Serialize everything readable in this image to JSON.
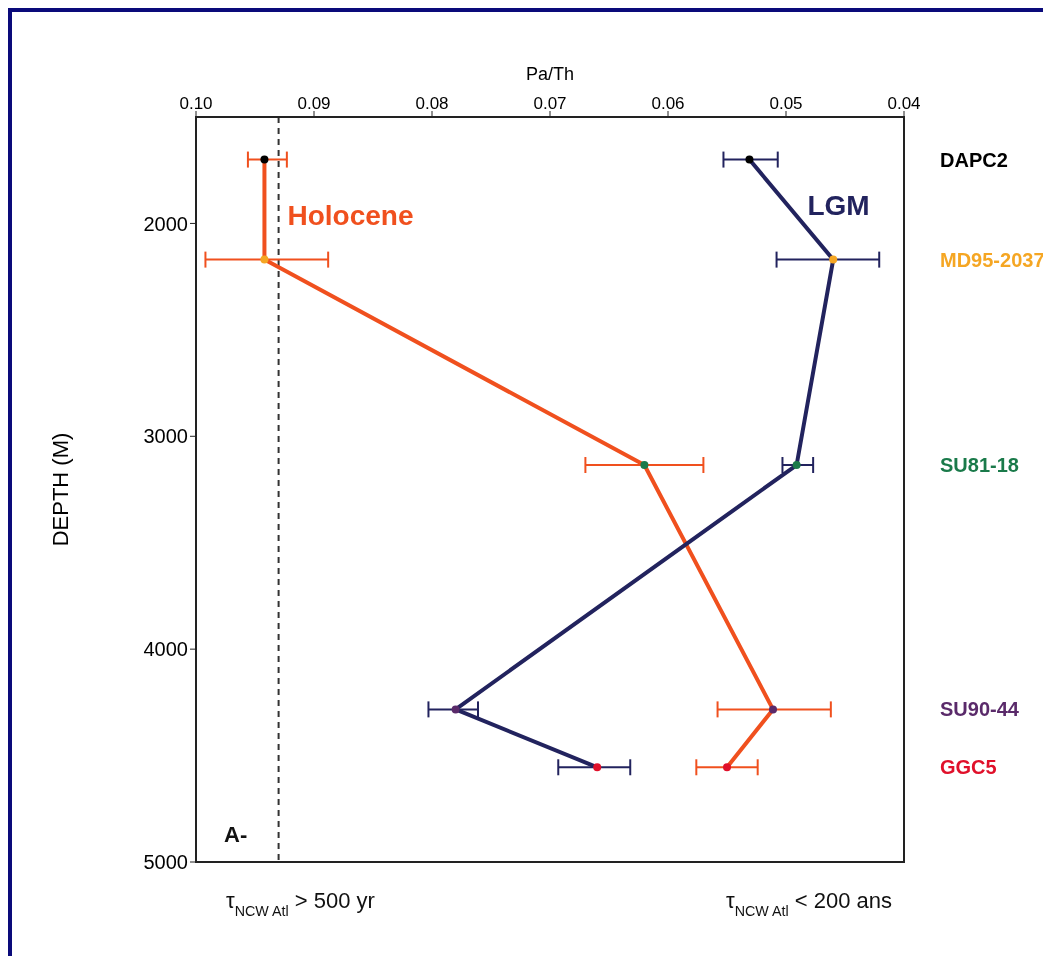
{
  "chart_data": {
    "type": "line",
    "orientation": "horizontal",
    "xlabel": "Pa/Th",
    "ylabel": "DEPTH (M)",
    "xlim": [
      0.1,
      0.04
    ],
    "xticks": [
      {
        "value": 0.1,
        "label": "0.10"
      },
      0.09,
      0.08,
      0.07,
      0.06,
      0.05,
      0.04
    ],
    "ylim": [
      5000,
      1500
    ],
    "yticks": [
      2000,
      3000,
      4000,
      5000
    ],
    "marker": "circle",
    "line_style": "solid",
    "series": [
      {
        "name": "Holocene",
        "color": "#f0501e",
        "x": [
          1700,
          2170,
          3135,
          4283,
          4555
        ],
        "values": [
          0.0942,
          0.0942,
          0.062,
          0.0511,
          0.055
        ],
        "colors": [
          "#000000",
          "#f5a623",
          "#1a7a4a",
          "#5a2a6a",
          "#e0102a"
        ],
        "errors": [
          [
            0.0923,
            0.0956
          ],
          [
            0.0888,
            0.0992
          ],
          [
            0.057,
            0.067
          ],
          [
            0.0462,
            0.0558
          ],
          [
            0.0524,
            0.0576
          ]
        ]
      },
      {
        "name": "LGM",
        "color": "#22235e",
        "x": [
          1700,
          2170,
          3135,
          4283,
          4555
        ],
        "values": [
          0.0531,
          0.046,
          0.0491,
          0.078,
          0.066
        ],
        "colors": [
          "#000000",
          "#f5a623",
          "#1a7a4a",
          "#5a2a6a",
          "#e0102a"
        ],
        "errors": [
          [
            0.0507,
            0.0553
          ],
          [
            0.0421,
            0.0508
          ],
          [
            0.0477,
            0.0503
          ],
          [
            0.0761,
            0.0803
          ],
          [
            0.0632,
            0.0693
          ]
        ]
      }
    ],
    "ref_lines": [
      {
        "axis": "x",
        "value": 0.093,
        "color": "#333333",
        "line_style": "dashed"
      }
    ],
    "annotations": [
      "DAPC2",
      "MD95-2037",
      "SU81-18",
      "SU90-44",
      "GGC5",
      "A-",
      "τ$_{NCW Atl}$ > 500 yr",
      "τ$_{NCW Atl}$ < 200 ans"
    ]
  }
}
